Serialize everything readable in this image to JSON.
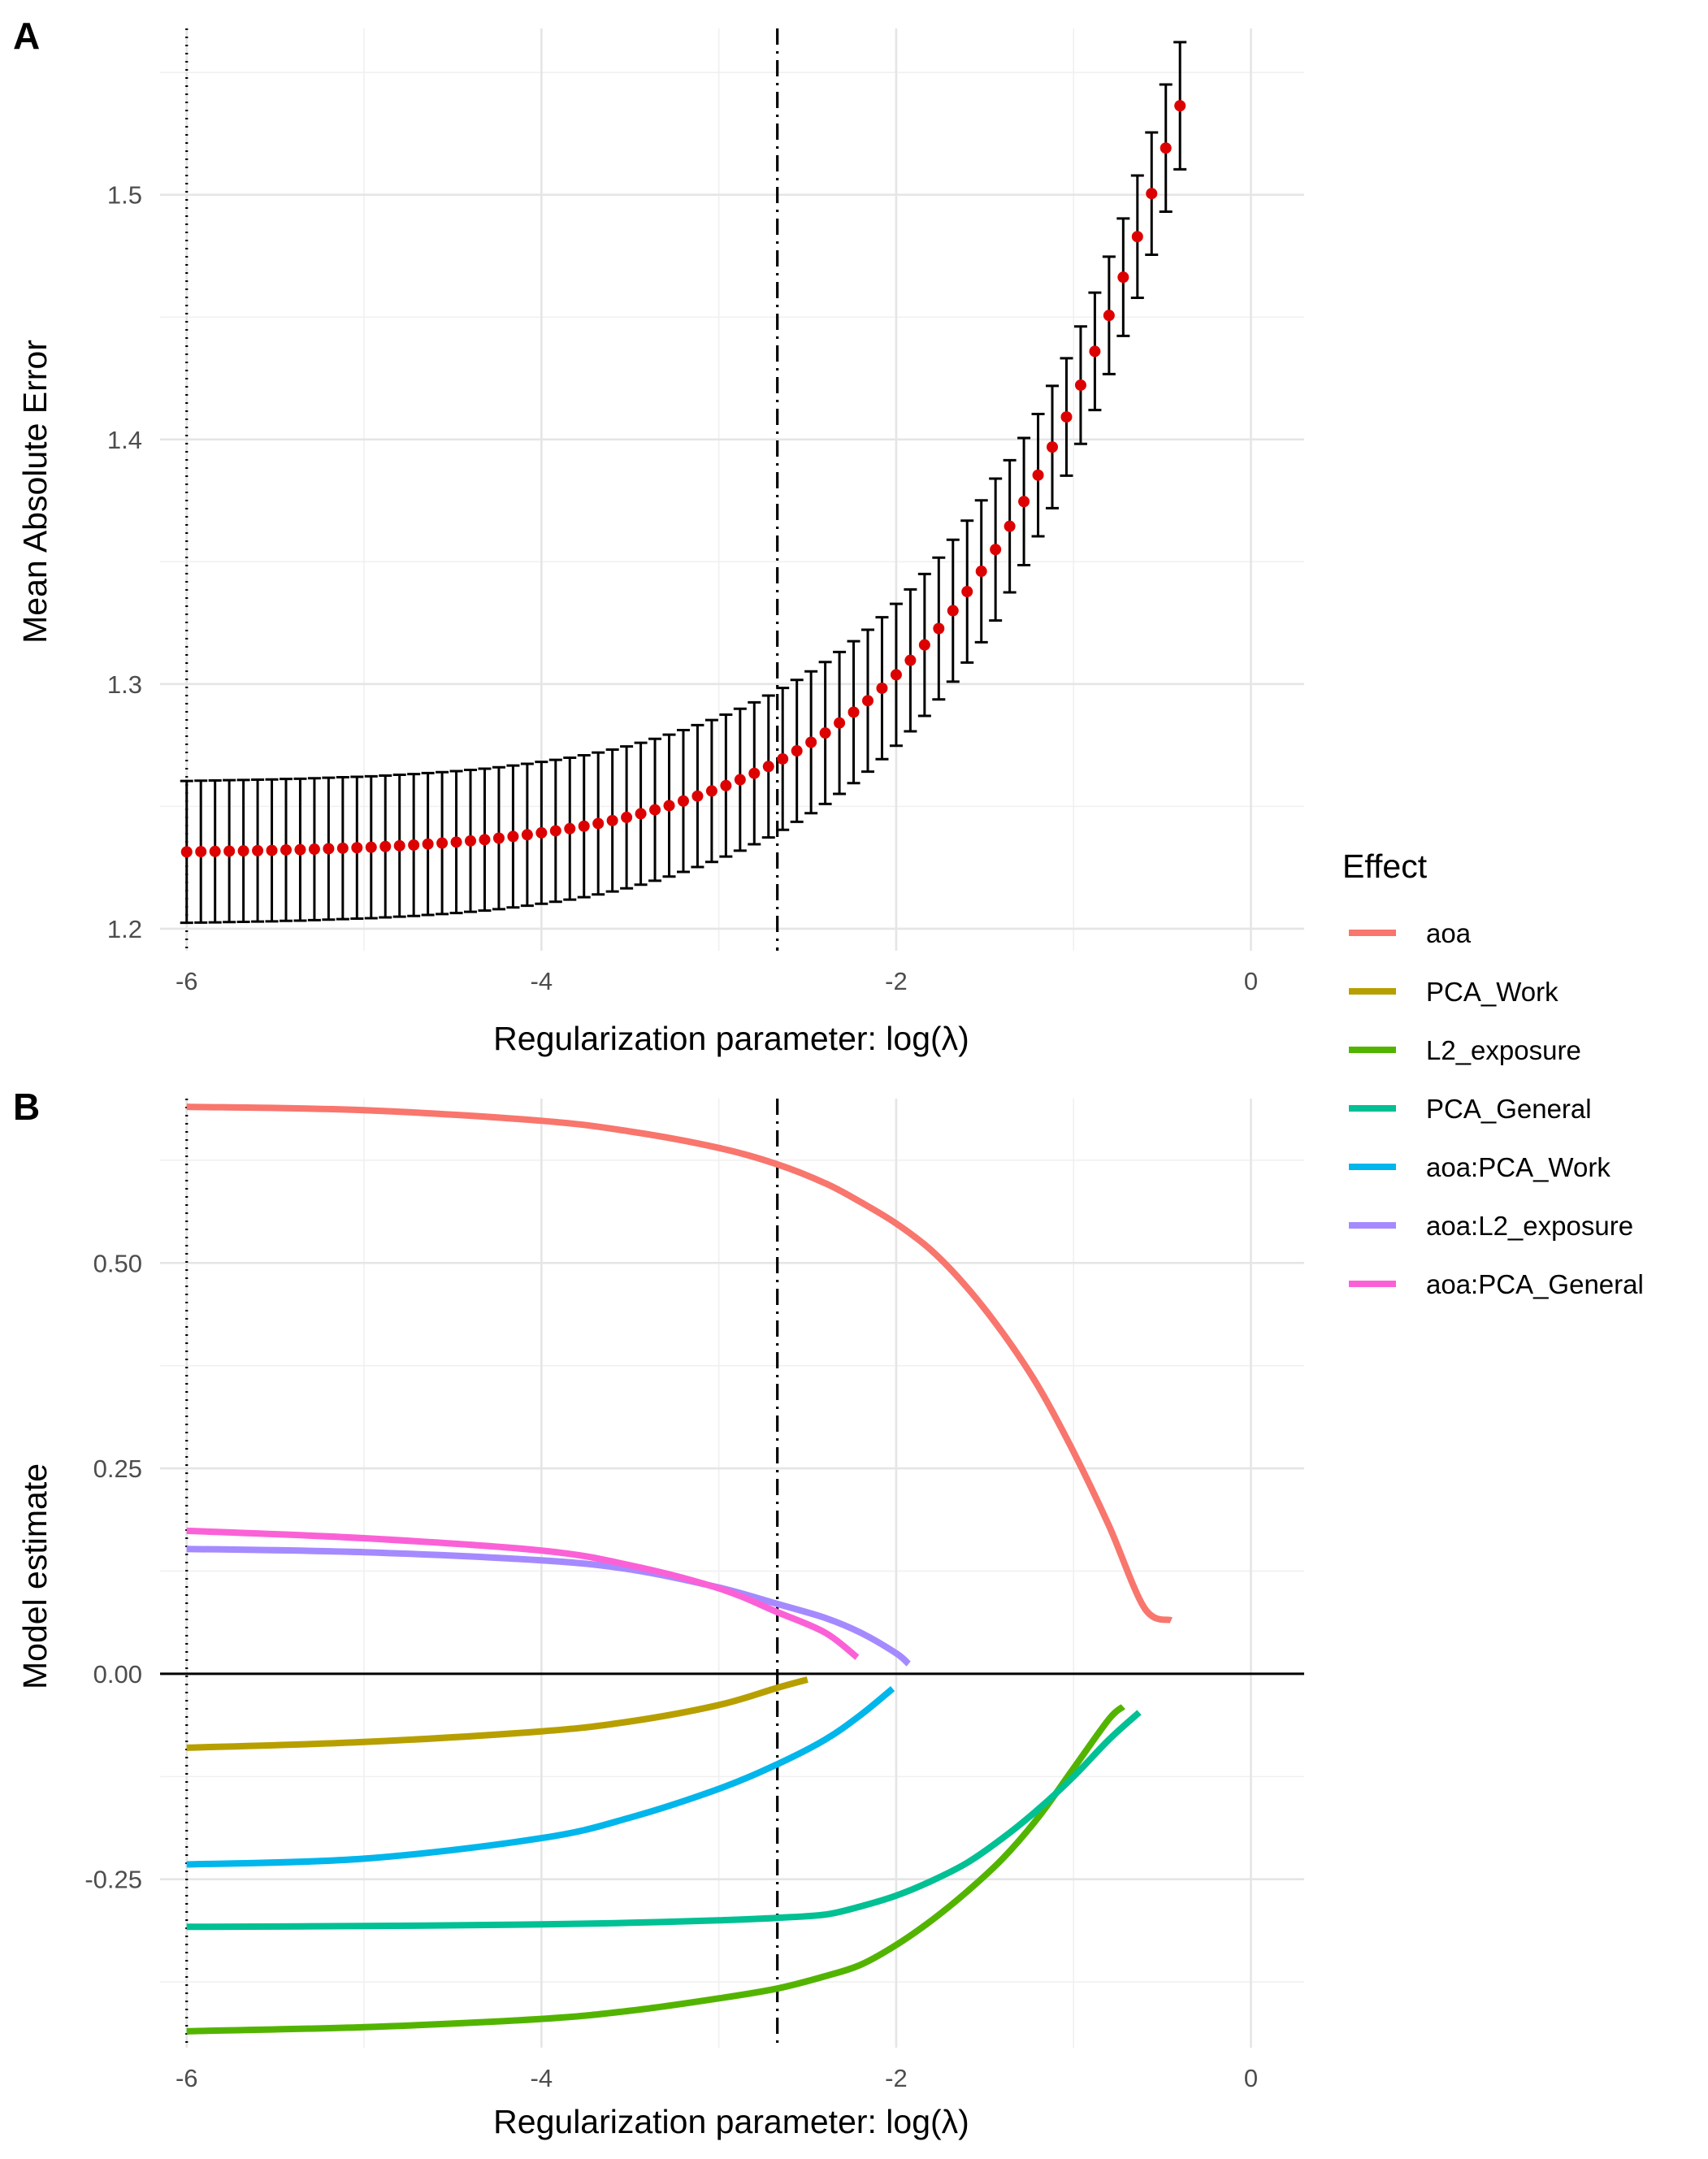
{
  "figure": {
    "panel_a_letter": "A",
    "panel_b_letter": "B"
  },
  "chart_data": [
    {
      "panel": "A",
      "type": "scatter",
      "title": "",
      "xlabel": "Regularization parameter: log(λ)",
      "ylabel": "Mean Absolute Error",
      "xlim": [
        -6.15,
        0.3
      ],
      "ylim": [
        1.191,
        1.568
      ],
      "x_ticks": [
        -6,
        -4,
        -2,
        0
      ],
      "x_tick_labels": [
        "-6",
        "-4",
        "-2",
        "0"
      ],
      "y_ticks": [
        1.2,
        1.3,
        1.4,
        1.5
      ],
      "y_tick_labels": [
        "1.2",
        "1.3",
        "1.4",
        "1.5"
      ],
      "grid": true,
      "point_color": "#dd0000",
      "errorbar_color": "#000000",
      "vlines": [
        {
          "x": -6.0,
          "style": "dotted"
        },
        {
          "x": -2.67,
          "style": "dotdash"
        }
      ],
      "x": [
        -6.0,
        -5.92,
        -5.84,
        -5.76,
        -5.68,
        -5.6,
        -5.52,
        -5.44,
        -5.36,
        -5.28,
        -5.2,
        -5.12,
        -5.04,
        -4.96,
        -4.88,
        -4.8,
        -4.72,
        -4.64,
        -4.56,
        -4.48,
        -4.4,
        -4.32,
        -4.24,
        -4.16,
        -4.08,
        -4.0,
        -3.92,
        -3.84,
        -3.76,
        -3.68,
        -3.6,
        -3.52,
        -3.44,
        -3.36,
        -3.28,
        -3.2,
        -3.12,
        -3.04,
        -2.96,
        -2.88,
        -2.8,
        -2.72,
        -2.64,
        -2.56,
        -2.48,
        -2.4,
        -2.32,
        -2.24,
        -2.16,
        -2.08,
        -2.0,
        -1.92,
        -1.84,
        -1.76,
        -1.68,
        -1.6,
        -1.52,
        -1.44,
        -1.36,
        -1.28,
        -1.2,
        -1.12,
        -1.04,
        -0.96,
        -0.88,
        -0.8,
        -0.72,
        -0.64,
        -0.56,
        -0.48,
        -0.4
      ],
      "values": [
        1.2314,
        1.2315,
        1.2316,
        1.2317,
        1.2318,
        1.2319,
        1.232,
        1.2322,
        1.2323,
        1.2325,
        1.2327,
        1.2329,
        1.2331,
        1.2333,
        1.2336,
        1.2339,
        1.2342,
        1.2346,
        1.235,
        1.2354,
        1.2359,
        1.2364,
        1.237,
        1.2377,
        1.2384,
        1.2392,
        1.24,
        1.2409,
        1.2419,
        1.243,
        1.2442,
        1.2455,
        1.247,
        1.2486,
        1.2503,
        1.2522,
        1.2542,
        1.2563,
        1.2585,
        1.2609,
        1.2635,
        1.2663,
        1.2694,
        1.2727,
        1.2762,
        1.28,
        1.2841,
        1.2885,
        1.2932,
        1.2983,
        1.3038,
        1.3097,
        1.316,
        1.3227,
        1.33,
        1.3378,
        1.3461,
        1.355,
        1.3645,
        1.3746,
        1.3854,
        1.3969,
        1.4092,
        1.4222,
        1.436,
        1.4507,
        1.4663,
        1.4829,
        1.5005,
        1.5191,
        1.5364
      ],
      "error_half_width": [
        0.029,
        0.029,
        0.029,
        0.029,
        0.029,
        0.029,
        0.029,
        0.029,
        0.029,
        0.029,
        0.029,
        0.029,
        0.029,
        0.029,
        0.029,
        0.029,
        0.029,
        0.029,
        0.029,
        0.029,
        0.029,
        0.029,
        0.029,
        0.029,
        0.029,
        0.029,
        0.029,
        0.029,
        0.029,
        0.029,
        0.029,
        0.029,
        0.029,
        0.029,
        0.029,
        0.029,
        0.029,
        0.029,
        0.029,
        0.029,
        0.029,
        0.029,
        0.029,
        0.029,
        0.029,
        0.029,
        0.029,
        0.029,
        0.029,
        0.029,
        0.029,
        0.029,
        0.029,
        0.029,
        0.029,
        0.029,
        0.029,
        0.029,
        0.027,
        0.026,
        0.025,
        0.025,
        0.024,
        0.024,
        0.024,
        0.024,
        0.024,
        0.025,
        0.025,
        0.026,
        0.026
      ]
    },
    {
      "panel": "B",
      "type": "line",
      "title": "",
      "xlabel": "Regularization parameter: log(λ)",
      "ylabel": "Model estimate",
      "xlim": [
        -6.15,
        0.3
      ],
      "ylim": [
        -0.455,
        0.7
      ],
      "x_ticks": [
        -6,
        -4,
        -2,
        0
      ],
      "x_tick_labels": [
        "-6",
        "-4",
        "-2",
        "0"
      ],
      "y_ticks": [
        -0.25,
        0.0,
        0.25,
        0.5
      ],
      "y_tick_labels": [
        "-0.25",
        "0.00",
        "0.25",
        "0.50"
      ],
      "grid": true,
      "hline": 0.0,
      "vlines": [
        {
          "x": -6.0,
          "style": "dotted"
        },
        {
          "x": -2.67,
          "style": "dotdash"
        }
      ],
      "legend_title": "Effect",
      "legend_position": "right",
      "series": [
        {
          "name": "aoa",
          "color": "#F8766D",
          "x": [
            -6.0,
            -5.0,
            -4.0,
            -3.5,
            -3.0,
            -2.67,
            -2.4,
            -2.2,
            -2.0,
            -1.8,
            -1.6,
            -1.4,
            -1.2,
            -1.0,
            -0.8,
            -0.6,
            -0.45
          ],
          "y": [
            0.69,
            0.686,
            0.673,
            0.66,
            0.64,
            0.62,
            0.597,
            0.574,
            0.548,
            0.515,
            0.47,
            0.415,
            0.35,
            0.27,
            0.18,
            0.08,
            0.065
          ]
        },
        {
          "name": "PCA_Work",
          "color": "#B79F00",
          "x": [
            -6.0,
            -5.0,
            -4.0,
            -3.5,
            -3.0,
            -2.67,
            -2.5
          ],
          "y": [
            -0.09,
            -0.083,
            -0.07,
            -0.058,
            -0.038,
            -0.017,
            -0.007
          ]
        },
        {
          "name": "L2_exposure",
          "color": "#53B400",
          "x": [
            -6.0,
            -5.0,
            -4.0,
            -3.5,
            -3.0,
            -2.67,
            -2.4,
            -2.2,
            -2.0,
            -1.8,
            -1.6,
            -1.4,
            -1.2,
            -1.0,
            -0.8,
            -0.72
          ],
          "y": [
            -0.435,
            -0.43,
            -0.42,
            -0.41,
            -0.395,
            -0.383,
            -0.368,
            -0.354,
            -0.33,
            -0.3,
            -0.265,
            -0.225,
            -0.175,
            -0.115,
            -0.055,
            -0.04
          ]
        },
        {
          "name": "PCA_General",
          "color": "#00C094",
          "x": [
            -6.0,
            -5.0,
            -4.0,
            -3.5,
            -3.0,
            -2.67,
            -2.4,
            -2.2,
            -2.0,
            -1.8,
            -1.6,
            -1.4,
            -1.2,
            -1.0,
            -0.8,
            -0.63
          ],
          "y": [
            -0.308,
            -0.307,
            -0.305,
            -0.303,
            -0.3,
            -0.297,
            -0.293,
            -0.283,
            -0.27,
            -0.252,
            -0.23,
            -0.2,
            -0.165,
            -0.125,
            -0.08,
            -0.047
          ]
        },
        {
          "name": "aoa:PCA_Work",
          "color": "#00B6EB",
          "x": [
            -6.0,
            -5.0,
            -4.0,
            -3.5,
            -3.0,
            -2.67,
            -2.4,
            -2.2,
            -2.02
          ],
          "y": [
            -0.232,
            -0.225,
            -0.2,
            -0.175,
            -0.14,
            -0.11,
            -0.08,
            -0.05,
            -0.018
          ]
        },
        {
          "name": "aoa:L2_exposure",
          "color": "#A58AFF",
          "x": [
            -6.0,
            -5.0,
            -4.0,
            -3.5,
            -3.0,
            -2.67,
            -2.4,
            -2.2,
            -2.0,
            -1.93
          ],
          "y": [
            0.152,
            0.148,
            0.138,
            0.127,
            0.105,
            0.085,
            0.068,
            0.05,
            0.025,
            0.012
          ]
        },
        {
          "name": "aoa:PCA_General",
          "color": "#FB61D7",
          "x": [
            -6.0,
            -5.0,
            -4.0,
            -3.5,
            -3.0,
            -2.67,
            -2.4,
            -2.22
          ],
          "y": [
            0.174,
            0.165,
            0.15,
            0.132,
            0.104,
            0.075,
            0.05,
            0.02
          ]
        }
      ]
    }
  ]
}
